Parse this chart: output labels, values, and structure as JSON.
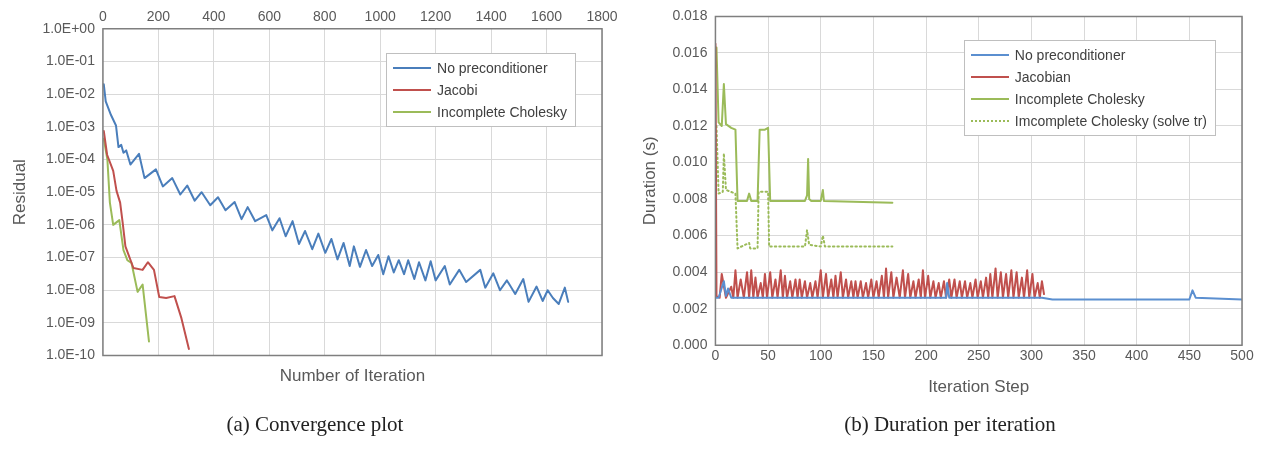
{
  "chart_data": [
    {
      "type": "line",
      "xlabel": "Number of Iteration",
      "ylabel": "Residual",
      "annotations": [
        "(a) Convergence plot"
      ],
      "log": "y",
      "grid": true,
      "legend": "top right",
      "marker": "none",
      "line_style": "solid",
      "xlim": [
        0,
        1800
      ],
      "xticks": [
        0,
        200,
        400,
        600,
        800,
        1000,
        1200,
        1400,
        1600,
        1800
      ],
      "ylim": [
        1e-10,
        1
      ],
      "yticks": [
        {
          "value": 1e-10,
          "label": "1.0E-10"
        },
        {
          "value": 1e-09,
          "label": "1.0E-09"
        },
        {
          "value": 1e-08,
          "label": "1.0E-08"
        },
        {
          "value": 1e-07,
          "label": "1.0E-07"
        },
        {
          "value": 1e-06,
          "label": "1.0E-06"
        },
        {
          "value": 1e-05,
          "label": "1.0E-05"
        },
        {
          "value": 0.0001,
          "label": "1.0E-04"
        },
        {
          "value": 0.001,
          "label": "1.0E-03"
        },
        {
          "value": 0.01,
          "label": "1.0E-02"
        },
        {
          "value": 0.1,
          "label": "1.0E-01"
        },
        {
          "value": 1,
          "label": "1.0E+00"
        }
      ],
      "series": [
        {
          "name": "No preconditioner",
          "color": "#4a7ebb",
          "x": [
            3,
            10,
            29,
            47,
            56,
            66,
            74,
            84,
            99,
            130,
            150,
            191,
            216,
            250,
            279,
            304,
            331,
            356,
            387,
            415,
            442,
            475,
            500,
            522,
            549,
            589,
            611,
            637,
            659,
            684,
            707,
            729,
            755,
            777,
            802,
            824,
            846,
            868,
            890,
            905,
            927,
            949,
            971,
            993,
            1011,
            1030,
            1049,
            1067,
            1086,
            1101,
            1123,
            1140,
            1163,
            1182,
            1200,
            1233,
            1251,
            1285,
            1310,
            1361,
            1379,
            1408,
            1432,
            1457,
            1487,
            1516,
            1535,
            1564,
            1586,
            1604,
            1623,
            1644,
            1666,
            1678
          ],
          "values": [
            0.02,
            0.006,
            0.0023,
            0.0011,
            0.00024,
            0.00028,
            0.00016,
            0.00019,
            7e-05,
            0.00015,
            2.7e-05,
            5e-05,
            1.5e-05,
            2.7e-05,
            8.5e-06,
            1.6e-05,
            5.5e-06,
            1e-05,
            4e-06,
            7e-06,
            2.8e-06,
            5e-06,
            1.5e-06,
            3.5e-06,
            1.3e-06,
            2e-06,
            6.8e-07,
            1.6e-06,
            4.5e-07,
            1.3e-06,
            2.6e-07,
            6.5e-07,
            1.8e-07,
            5.4e-07,
            1.4e-07,
            3.7e-07,
            8.8e-08,
            2.8e-07,
            5.5e-08,
            2.2e-07,
            5.2e-08,
            1.7e-07,
            5.5e-08,
            1.2e-07,
            3.1e-08,
            1.1e-07,
            3.5e-08,
            8.3e-08,
            3.1e-08,
            8.3e-08,
            2.2e-08,
            7.2e-08,
            2e-08,
            7.7e-08,
            2e-08,
            5.5e-08,
            1.5e-08,
            4.2e-08,
            1.8e-08,
            4.2e-08,
            1.2e-08,
            3.3e-08,
            1e-08,
            2e-08,
            7.7e-09,
            2.2e-08,
            4.4e-09,
            1.3e-08,
            4.7e-09,
            1e-08,
            5.8e-09,
            3.8e-09,
            1.2e-08,
            4.4e-09
          ]
        },
        {
          "name": "Jacobi",
          "color": "#c0504d",
          "x": [
            3,
            15,
            37,
            49,
            62,
            71,
            81,
            110,
            143,
            162,
            184,
            203,
            228,
            258,
            283,
            310
          ],
          "values": [
            0.00075,
            0.00014,
            4.5e-05,
            1.1e-05,
            4.8e-06,
            1.2e-06,
            2.2e-07,
            4.8e-08,
            4.2e-08,
            7.2e-08,
            4.2e-08,
            6.2e-09,
            5.8e-09,
            6.6e-09,
            1.4e-09,
            1.6e-10
          ]
        },
        {
          "name": "Incomplete Cholesky",
          "color": "#9bbb59",
          "x": [
            3,
            16,
            25,
            37,
            59,
            74,
            88,
            103,
            125,
            143,
            166
          ],
          "values": [
            0.00043,
            0.0001,
            4.8e-06,
            1e-06,
            1.4e-06,
            1.7e-07,
            8.3e-08,
            6.8e-08,
            8.9e-09,
            1.5e-08,
            2.7e-10
          ]
        }
      ]
    },
    {
      "type": "line",
      "xlabel": "Iteration Step",
      "ylabel": "Duration (s)",
      "annotations": [
        "(b) Duration per iteration"
      ],
      "grid": true,
      "legend": "top right",
      "marker": "none",
      "line_style": "solid",
      "xlim": [
        0,
        500
      ],
      "xticks": [
        0,
        50,
        100,
        150,
        200,
        250,
        300,
        350,
        400,
        450,
        500
      ],
      "ylim": [
        0,
        0.018
      ],
      "yticks": [
        {
          "value": 0,
          "label": "0.000"
        },
        {
          "value": 0.002,
          "label": "0.002"
        },
        {
          "value": 0.004,
          "label": "0.004"
        },
        {
          "value": 0.006,
          "label": "0.006"
        },
        {
          "value": 0.008,
          "label": "0.008"
        },
        {
          "value": 0.01,
          "label": "0.010"
        },
        {
          "value": 0.012,
          "label": "0.012"
        },
        {
          "value": 0.014,
          "label": "0.014"
        },
        {
          "value": 0.016,
          "label": "0.016"
        },
        {
          "value": 0.018,
          "label": "0.018"
        }
      ],
      "series": [
        {
          "name": "No preconditioner",
          "color": "#5b8fd0",
          "x": [
            0,
            3,
            8,
            10,
            12,
            15,
            100,
            219,
            220,
            222,
            310,
            320,
            450,
            453,
            456,
            500
          ],
          "values": [
            0.0026,
            0.0026,
            0.0035,
            0.0027,
            0.0031,
            0.0026,
            0.0026,
            0.0026,
            0.0034,
            0.0026,
            0.0026,
            0.0025,
            0.0025,
            0.003,
            0.0026,
            0.0025
          ]
        },
        {
          "name": "Jacobian",
          "color": "#c0504d",
          "x": [
            0,
            1,
            4,
            6,
            10,
            15,
            17,
            19,
            21,
            24,
            27,
            30,
            32,
            34,
            36,
            38,
            40,
            43,
            45,
            47,
            49,
            52,
            54,
            57,
            59,
            62,
            64,
            66,
            68,
            71,
            73,
            76,
            78,
            80,
            82,
            85,
            87,
            90,
            92,
            95,
            97,
            100,
            102,
            105,
            107,
            110,
            112,
            114,
            116,
            119,
            121,
            124,
            126,
            129,
            131,
            133,
            135,
            138,
            140,
            143,
            145,
            148,
            150,
            153,
            155,
            158,
            160,
            162,
            164,
            167,
            169,
            172,
            175,
            178,
            180,
            183,
            185,
            188,
            190,
            193,
            195,
            197,
            199,
            202,
            204,
            207,
            209,
            212,
            214,
            217,
            219,
            222,
            224,
            227,
            229,
            232,
            234,
            237,
            239,
            242,
            244,
            247,
            249,
            252,
            254,
            257,
            259,
            261,
            263,
            266,
            268,
            271,
            273,
            276,
            278,
            281,
            283,
            286,
            288,
            291,
            293,
            296,
            298,
            301,
            303,
            306,
            308,
            310,
            312
          ],
          "values": [
            0.0165,
            0.0027,
            0.0026,
            0.0039,
            0.0026,
            0.0032,
            0.0026,
            0.0041,
            0.0026,
            0.0036,
            0.0026,
            0.004,
            0.0026,
            0.0041,
            0.0026,
            0.0037,
            0.0026,
            0.0034,
            0.0026,
            0.0039,
            0.0026,
            0.004,
            0.0026,
            0.0036,
            0.0026,
            0.0041,
            0.0026,
            0.0038,
            0.0026,
            0.0035,
            0.0026,
            0.0036,
            0.0026,
            0.0036,
            0.0026,
            0.0035,
            0.0026,
            0.0034,
            0.0026,
            0.0035,
            0.0026,
            0.0041,
            0.0026,
            0.0039,
            0.0026,
            0.0036,
            0.0026,
            0.0038,
            0.0026,
            0.004,
            0.0026,
            0.0036,
            0.0026,
            0.0035,
            0.0026,
            0.0035,
            0.0026,
            0.0035,
            0.0026,
            0.0034,
            0.0026,
            0.0036,
            0.0026,
            0.0035,
            0.0026,
            0.0038,
            0.0026,
            0.0042,
            0.0026,
            0.004,
            0.0026,
            0.0037,
            0.0026,
            0.0041,
            0.0026,
            0.0039,
            0.0026,
            0.0035,
            0.0026,
            0.0036,
            0.0026,
            0.0041,
            0.0026,
            0.0038,
            0.0026,
            0.0035,
            0.0026,
            0.0034,
            0.0026,
            0.0035,
            0.0026,
            0.0036,
            0.0026,
            0.0036,
            0.0026,
            0.0035,
            0.0026,
            0.0035,
            0.0026,
            0.0034,
            0.0026,
            0.0036,
            0.0026,
            0.0035,
            0.0026,
            0.0037,
            0.0026,
            0.0039,
            0.0026,
            0.0042,
            0.0026,
            0.004,
            0.0026,
            0.0039,
            0.0026,
            0.0041,
            0.0026,
            0.004,
            0.0026,
            0.0037,
            0.0026,
            0.0041,
            0.0026,
            0.0039,
            0.0026,
            0.0034,
            0.0026,
            0.0035,
            0.0028
          ]
        },
        {
          "name": "Incomplete Cholesky",
          "color": "#9bbb59",
          "x": [
            1,
            3,
            6,
            8,
            10,
            15,
            19,
            21,
            30,
            32,
            34,
            40,
            42,
            47,
            50,
            52,
            85,
            87,
            88,
            89,
            91,
            100,
            102,
            103,
            168
          ],
          "values": [
            0.0163,
            0.0122,
            0.012,
            0.0143,
            0.0121,
            0.0119,
            0.0118,
            0.0079,
            0.0079,
            0.0083,
            0.0079,
            0.0079,
            0.0118,
            0.0118,
            0.0119,
            0.0079,
            0.0079,
            0.0082,
            0.0102,
            0.008,
            0.0079,
            0.0079,
            0.0085,
            0.0079,
            0.0078
          ]
        },
        {
          "name": "Imcomplete Cholesky (solve tr)",
          "color": "#9bbb59",
          "line_style": "dotted",
          "x": [
            1,
            3,
            7,
            8,
            10,
            19,
            21,
            32,
            33,
            40,
            41,
            50,
            51,
            85,
            87,
            89,
            100,
            102,
            104,
            168
          ],
          "values": [
            0.012,
            0.0083,
            0.0084,
            0.0105,
            0.0085,
            0.0083,
            0.0053,
            0.0056,
            0.0053,
            0.0053,
            0.0084,
            0.0084,
            0.0054,
            0.0054,
            0.0063,
            0.0055,
            0.0054,
            0.006,
            0.0054,
            0.0054
          ]
        }
      ]
    }
  ]
}
